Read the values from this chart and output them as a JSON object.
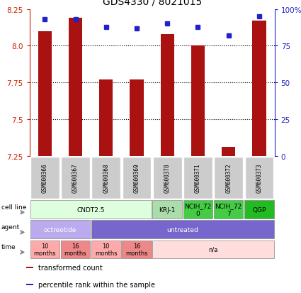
{
  "title": "GDS4330 / 8021015",
  "samples": [
    "GSM600366",
    "GSM600367",
    "GSM600368",
    "GSM600369",
    "GSM600370",
    "GSM600371",
    "GSM600372",
    "GSM600373"
  ],
  "bar_values": [
    8.1,
    8.19,
    7.77,
    7.77,
    8.08,
    8.0,
    7.31,
    8.17
  ],
  "percentile_values": [
    93,
    93,
    88,
    87,
    90,
    88,
    82,
    95
  ],
  "ylim": [
    7.25,
    8.25
  ],
  "yticks_left": [
    7.25,
    7.5,
    7.75,
    8.0,
    8.25
  ],
  "yticks_right": [
    0,
    25,
    50,
    75,
    100
  ],
  "bar_color": "#aa1111",
  "dot_color": "#2222cc",
  "cell_line_groups": [
    {
      "label": "CNDT2.5",
      "start": 0,
      "end": 4,
      "color": "#ddffdd"
    },
    {
      "label": "KRJ-1",
      "start": 4,
      "end": 5,
      "color": "#aaddaa"
    },
    {
      "label": "NCIH_72\n0",
      "start": 5,
      "end": 6,
      "color": "#44cc44"
    },
    {
      "label": "NCIH_72\n7",
      "start": 6,
      "end": 7,
      "color": "#44cc44"
    },
    {
      "label": "QGP",
      "start": 7,
      "end": 8,
      "color": "#22bb22"
    }
  ],
  "agent_groups": [
    {
      "label": "octreotide",
      "start": 0,
      "end": 2,
      "color": "#bbaaee"
    },
    {
      "label": "untreated",
      "start": 2,
      "end": 8,
      "color": "#7766cc"
    }
  ],
  "time_groups": [
    {
      "label": "10\nmonths",
      "start": 0,
      "end": 1,
      "color": "#ffaaaa"
    },
    {
      "label": "16\nmonths",
      "start": 1,
      "end": 2,
      "color": "#ee8888"
    },
    {
      "label": "10\nmonths",
      "start": 2,
      "end": 3,
      "color": "#ffaaaa"
    },
    {
      "label": "16\nmonths",
      "start": 3,
      "end": 4,
      "color": "#ee8888"
    },
    {
      "label": "n/a",
      "start": 4,
      "end": 8,
      "color": "#ffdddd"
    }
  ],
  "row_labels": [
    "cell line",
    "agent",
    "time"
  ],
  "legend_items": [
    {
      "color": "#aa1111",
      "label": "transformed count"
    },
    {
      "color": "#2222cc",
      "label": "percentile rank within the sample"
    }
  ]
}
